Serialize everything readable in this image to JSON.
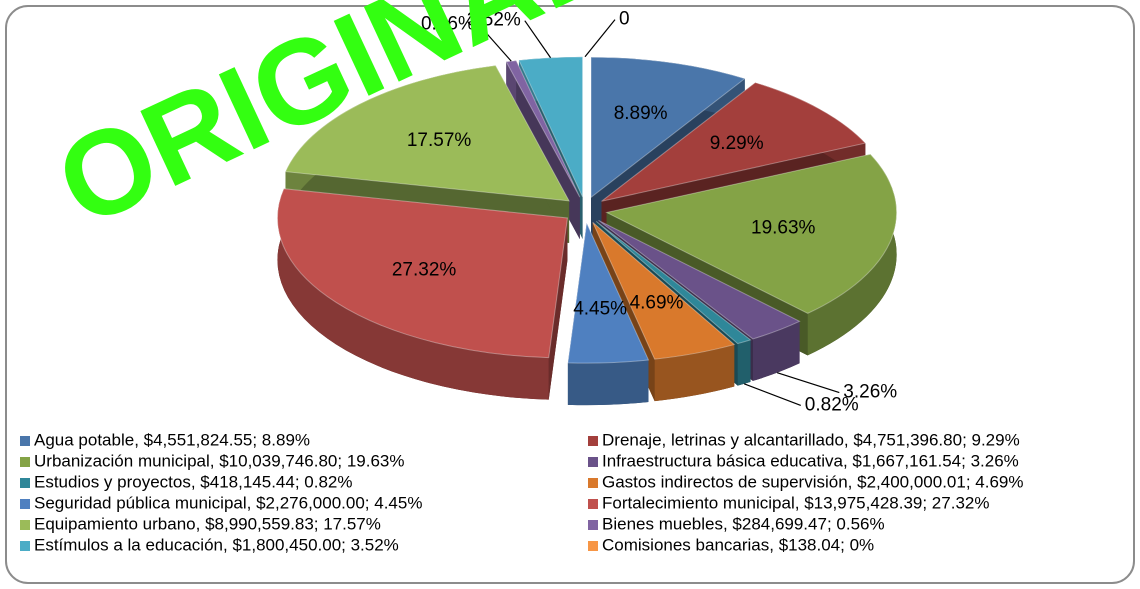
{
  "chart_data": {
    "type": "pie",
    "watermark": "ORIGINAL",
    "categories": [
      "Agua potable",
      "Drenaje, letrinas y alcantarillado",
      "Urbanización municipal",
      "Infraestructura básica educativa",
      "Estudios y proyectos",
      "Gastos indirectos de supervisión",
      "Seguridad pública municipal",
      "Fortalecimiento municipal",
      "Equipamiento urbano",
      "Bienes muebles",
      "Estímulos a la educación",
      "Comisiones bancarias"
    ],
    "values": [
      8.89,
      9.29,
      19.63,
      3.26,
      0.82,
      4.69,
      4.45,
      27.32,
      17.57,
      0.56,
      3.52,
      0
    ],
    "value_labels": [
      "8.89%",
      "9.29%",
      "19.63%",
      "3.26%",
      "0.82%",
      "4.69%",
      "4.45%",
      "27.32%",
      "17.57%",
      "0.56%",
      "3.52%",
      "0"
    ],
    "legend_labels": [
      "Agua potable, $4,551,824.55;  8.89%",
      "Drenaje, letrinas y alcantarillado, $4,751,396.80;  9.29%",
      "Urbanización municipal, $10,039,746.80;  19.63%",
      "Infraestructura básica educativa, $1,667,161.54;  3.26%",
      "Estudios y proyectos, $418,145.44;  0.82%",
      "Gastos indirectos de supervisión, $2,400,000.01;  4.69%",
      "Seguridad pública municipal, $2,276,000.00;  4.45%",
      "Fortalecimiento municipal, $13,975,428.39;  27.32%",
      "Equipamiento urbano, $8,990,559.83;  17.57%",
      "Bienes muebles, $284,699.47;  0.56%",
      "Estímulos a la educación, $1,800,450.00;  3.52%",
      "Comisiones bancarias, $138.04;  0%"
    ],
    "colors": [
      "#4a76aa",
      "#a33f3c",
      "#84a346",
      "#6a5289",
      "#2f8799",
      "#d9792c",
      "#4f80c0",
      "#c0504d",
      "#9bbb59",
      "#8064a2",
      "#4bacc6",
      "#f79646"
    ],
    "legend": "bottom"
  }
}
